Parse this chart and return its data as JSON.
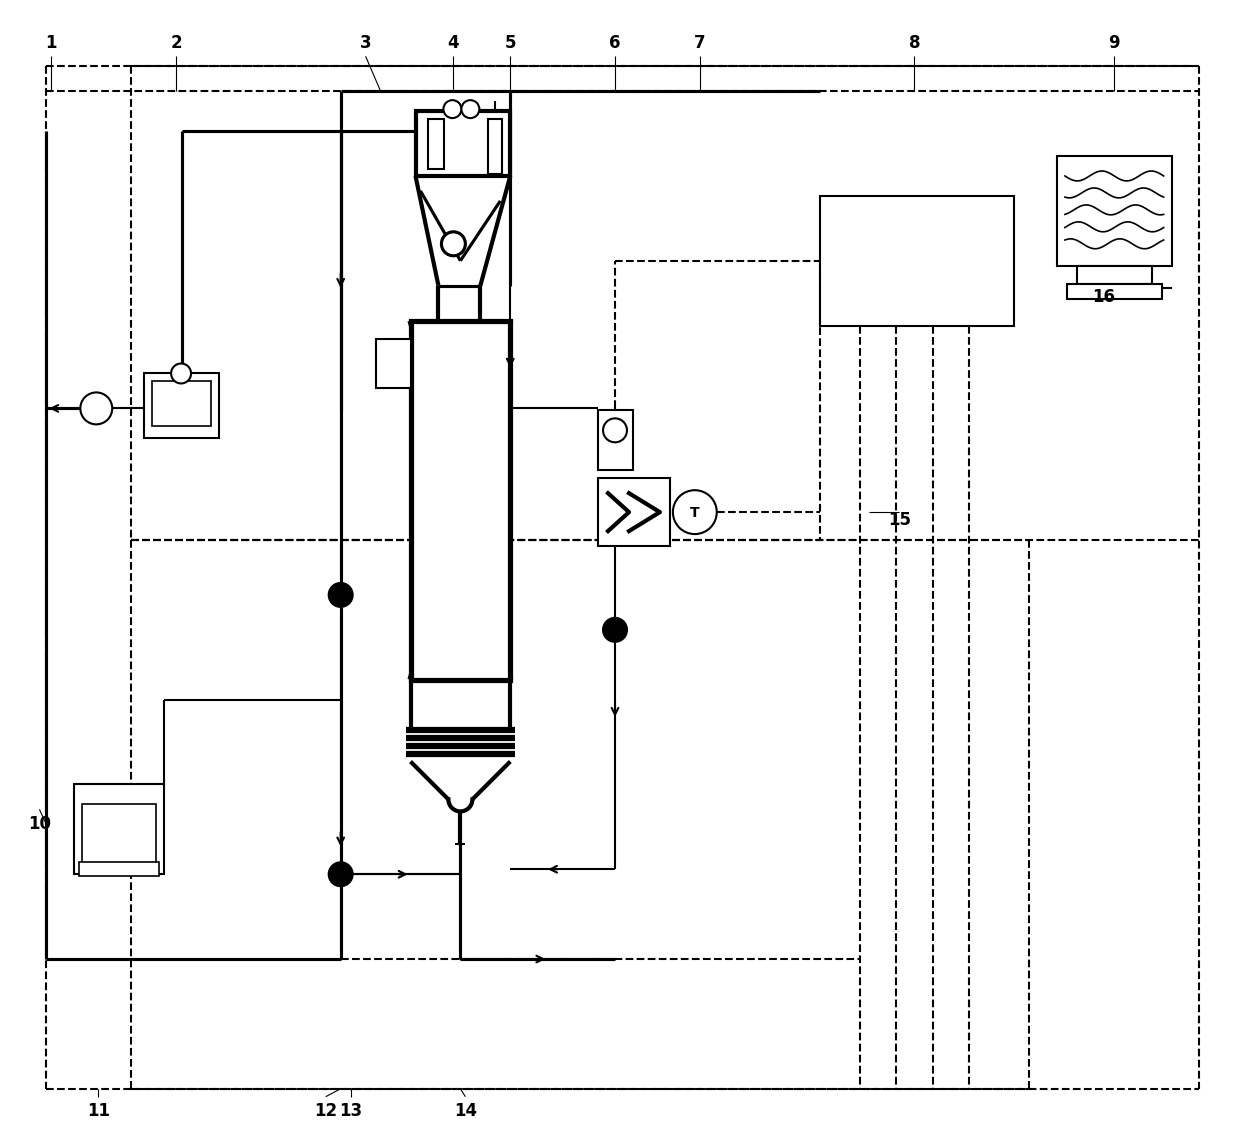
{
  "bg_color": "#ffffff",
  "lc": "#000000",
  "lw": 1.5,
  "dlw": 1.5,
  "figsize": [
    12.4,
    11.35
  ],
  "dpi": 100
}
